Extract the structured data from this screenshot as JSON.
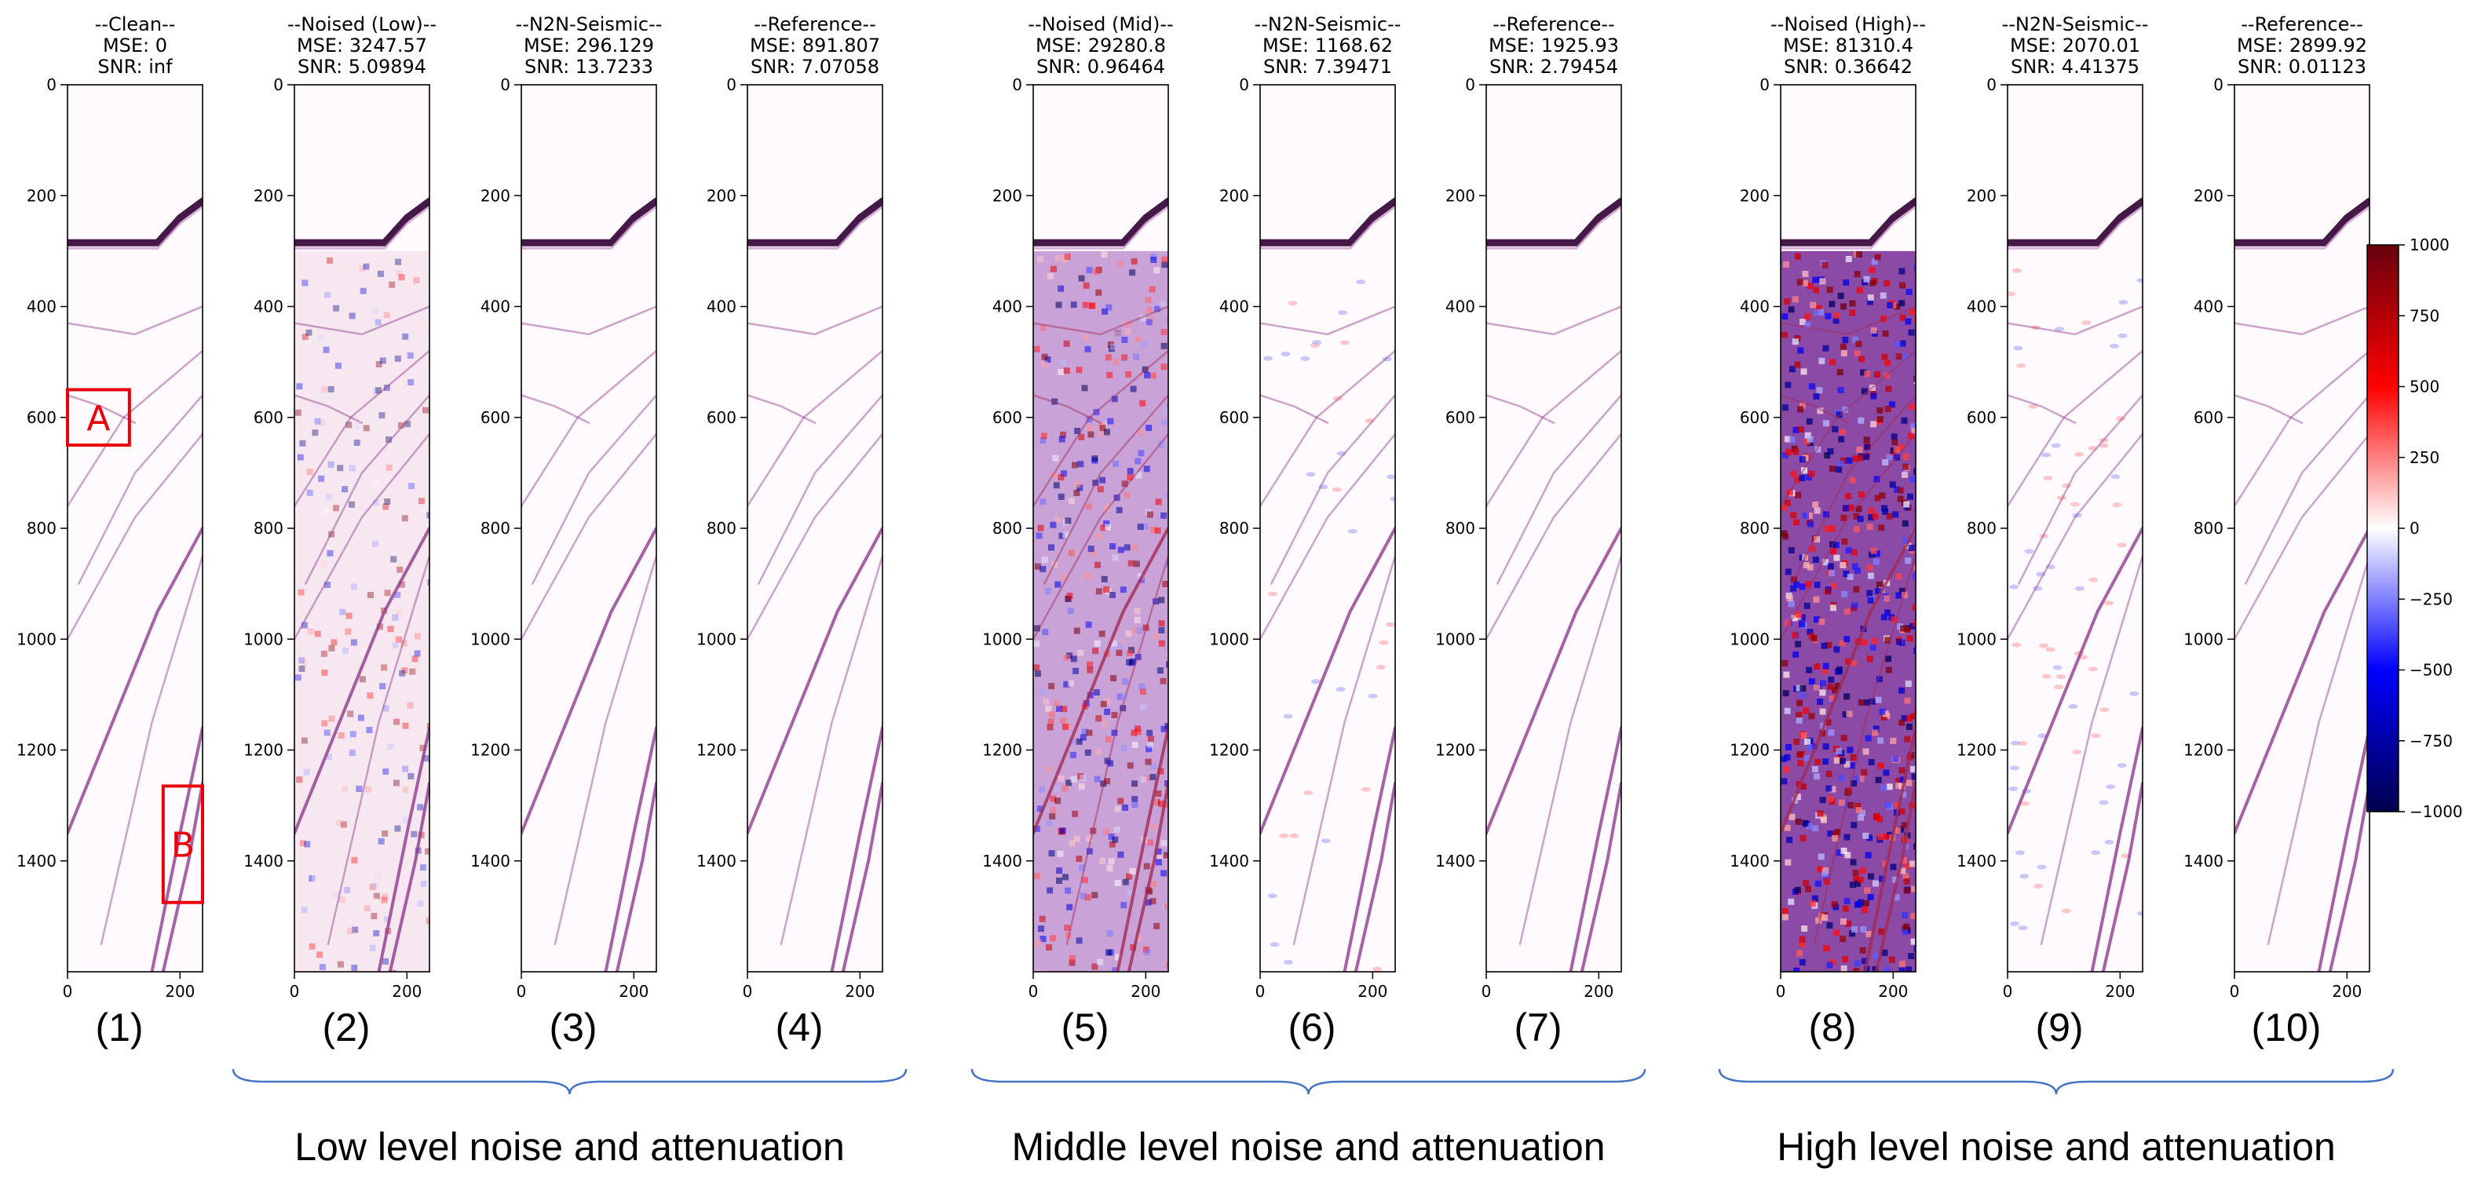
{
  "figure": {
    "colors": {
      "accent_red": "#e8000b",
      "brace": "#4472c4",
      "ink": "#000000"
    },
    "colormap": "seismic",
    "panels": [
      {
        "title": "--Clean--",
        "mse": "MSE: 0",
        "snr": "SNR: inf",
        "caption": "(1)",
        "style": "clean",
        "noise": 0
      },
      {
        "title": "--Noised (Low)--",
        "mse": "MSE: 3247.57",
        "snr": "SNR: 5.09894",
        "caption": "(2)",
        "style": "noised",
        "noise": 0.25
      },
      {
        "title": "--N2N-Seismic--",
        "mse": "MSE: 296.129",
        "snr": "SNR: 13.7233",
        "caption": "(3)",
        "style": "clean",
        "noise": 0
      },
      {
        "title": "--Reference--",
        "mse": "MSE: 891.807",
        "snr": "SNR: 7.07058",
        "caption": "(4)",
        "style": "clean",
        "noise": 0
      },
      {
        "title": "--Noised (Mid)--",
        "mse": "MSE: 29280.8",
        "snr": "SNR: 0.96464",
        "caption": "(5)",
        "style": "noised",
        "noise": 0.6
      },
      {
        "title": "--N2N-Seismic--",
        "mse": "MSE: 1168.62",
        "snr": "SNR: 7.39471",
        "caption": "(6)",
        "style": "denoised",
        "noise": 0.1
      },
      {
        "title": "--Reference--",
        "mse": "MSE: 1925.93",
        "snr": "SNR: 2.79454",
        "caption": "(7)",
        "style": "clean",
        "noise": 0
      },
      {
        "title": "--Noised (High)--",
        "mse": "MSE: 81310.4",
        "snr": "SNR: 0.36642",
        "caption": "(8)",
        "style": "noised",
        "noise": 1.0
      },
      {
        "title": "--N2N-Seismic--",
        "mse": "MSE: 2070.01",
        "snr": "SNR: 4.41375",
        "caption": "(9)",
        "style": "denoised",
        "noise": 0.2
      },
      {
        "title": "--Reference--",
        "mse": "MSE: 2899.92",
        "snr": "SNR: 0.01123",
        "caption": "(10)",
        "style": "clean",
        "noise": 0
      }
    ],
    "groups": [
      {
        "label": "Low level noise and attenuation",
        "from": 1,
        "to": 3
      },
      {
        "label": "Middle level noise and attenuation",
        "from": 4,
        "to": 6
      },
      {
        "label": "High level noise and attenuation",
        "from": 7,
        "to": 9
      }
    ],
    "boxes": [
      {
        "label": "A",
        "x": [
          0,
          110
        ],
        "y": [
          550,
          650
        ]
      },
      {
        "label": "B",
        "x": [
          170,
          240
        ],
        "y": [
          1265,
          1475
        ]
      }
    ]
  },
  "chart_data": {
    "type": "heatmap",
    "x_range": [
      0,
      240
    ],
    "y_range": [
      0,
      1600
    ],
    "y_inverted": true,
    "x_ticks": [
      "0",
      "200"
    ],
    "y_ticks": [
      "0",
      "200",
      "400",
      "600",
      "800",
      "1000",
      "1200",
      "1400"
    ],
    "y_tick_values": [
      0,
      200,
      400,
      600,
      800,
      1000,
      1200,
      1400
    ],
    "colorbar": {
      "range": [
        -1000,
        1000
      ],
      "ticks": [
        "1000",
        "750",
        "500",
        "250",
        "0",
        "−250",
        "−500",
        "−750",
        "−1000"
      ],
      "tick_values": [
        1000,
        750,
        500,
        250,
        0,
        -250,
        -500,
        -750,
        -1000
      ]
    },
    "panel_metrics": [
      {
        "panel": "(1)",
        "mse": 0,
        "snr": "inf"
      },
      {
        "panel": "(2)",
        "mse": 3247.57,
        "snr": 5.09894
      },
      {
        "panel": "(3)",
        "mse": 296.129,
        "snr": 13.7233
      },
      {
        "panel": "(4)",
        "mse": 891.807,
        "snr": 7.07058
      },
      {
        "panel": "(5)",
        "mse": 29280.8,
        "snr": 0.96464
      },
      {
        "panel": "(6)",
        "mse": 1168.62,
        "snr": 7.39471
      },
      {
        "panel": "(7)",
        "mse": 1925.93,
        "snr": 2.79454
      },
      {
        "panel": "(8)",
        "mse": 81310.4,
        "snr": 0.36642
      },
      {
        "panel": "(9)",
        "mse": 2070.01,
        "snr": 4.41375
      },
      {
        "panel": "(10)",
        "mse": 2899.92,
        "snr": 0.01123
      }
    ],
    "reflectors": [
      {
        "name": "seafloor",
        "points": [
          [
            0,
            285
          ],
          [
            160,
            285
          ],
          [
            200,
            240
          ],
          [
            240,
            210
          ]
        ]
      },
      {
        "points": [
          [
            0,
            1350
          ],
          [
            80,
            1150
          ],
          [
            160,
            950
          ],
          [
            240,
            800
          ]
        ]
      },
      {
        "points": [
          [
            150,
            1600
          ],
          [
            200,
            1350
          ],
          [
            240,
            1160
          ]
        ]
      },
      {
        "points": [
          [
            170,
            1600
          ],
          [
            215,
            1400
          ],
          [
            240,
            1260
          ]
        ]
      },
      {
        "points": [
          [
            60,
            1550
          ],
          [
            150,
            1150
          ],
          [
            240,
            850
          ]
        ]
      },
      {
        "points": [
          [
            0,
            1000
          ],
          [
            120,
            780
          ],
          [
            240,
            630
          ]
        ]
      },
      {
        "points": [
          [
            20,
            900
          ],
          [
            120,
            700
          ],
          [
            240,
            560
          ]
        ]
      },
      {
        "points": [
          [
            0,
            560
          ],
          [
            60,
            580
          ],
          [
            120,
            610
          ]
        ]
      },
      {
        "points": [
          [
            0,
            430
          ],
          [
            120,
            450
          ],
          [
            240,
            400
          ]
        ]
      },
      {
        "points": [
          [
            0,
            760
          ],
          [
            100,
            600
          ],
          [
            240,
            480
          ]
        ]
      }
    ]
  }
}
